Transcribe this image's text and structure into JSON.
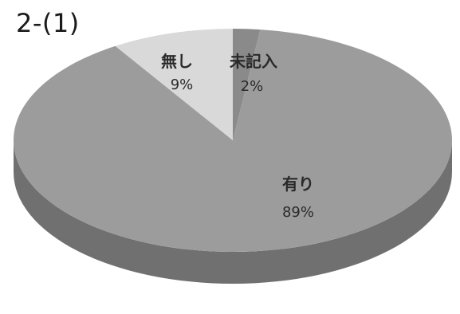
{
  "chart_data": {
    "type": "pie",
    "title": "2-(1)",
    "slices": [
      {
        "label": "有り",
        "pct_label": "89%",
        "value": 89,
        "color": "#9c9c9c"
      },
      {
        "label": "無し",
        "pct_label": "9%",
        "value": 9,
        "color": "#d9d9d9"
      },
      {
        "label": "未記入",
        "pct_label": "2%",
        "value": 2,
        "color": "#8a8a8a"
      }
    ],
    "three_d": true,
    "legend": "none"
  }
}
